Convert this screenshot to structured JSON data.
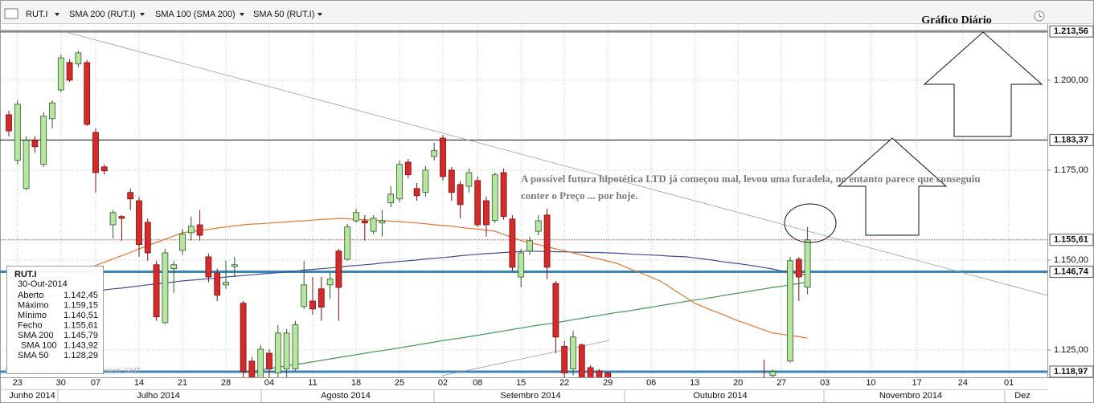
{
  "chart_data": {
    "type": "candlestick",
    "symbol": "RUT.I",
    "title": "Gráfico Diário",
    "annotation": [
      "A possível futura hipotética LTD já começou mal, levou uma furadela, no entanto parece que conseguiu",
      "conter o Preço ... por hoje."
    ],
    "disclaimer": "PREÇO INDICATIVO - Fuso horário: GMT",
    "ylim": [
      1117.4,
      1215.6
    ],
    "yticks": [
      {
        "value": 1125,
        "label": "1.125,00"
      },
      {
        "value": 1150,
        "label": "1.150,00"
      },
      {
        "value": 1175,
        "label": "1.175,00"
      },
      {
        "value": 1200,
        "label": "1.200,00"
      }
    ],
    "grid": true,
    "up_color": "#b8e6a0",
    "down_color": "#d42a2a",
    "levels": [
      {
        "value": 1213.56,
        "label": "1.213,56",
        "color": "#8a8a8a"
      },
      {
        "value": 1183.37,
        "label": "1.183,37",
        "color": "#111111"
      },
      {
        "value": 1155.61,
        "label": "1.155,61",
        "color": "#c05050"
      },
      {
        "value": 1146.74,
        "label": "1.146,74",
        "color": "#3a84ba"
      },
      {
        "value": 1118.97,
        "label": "1.118,97",
        "color": "#3a84ba"
      }
    ],
    "categories": [
      null,
      "23",
      null,
      null,
      null,
      null,
      "30",
      null,
      null,
      null,
      "07",
      null,
      null,
      null,
      null,
      "14",
      null,
      null,
      null,
      null,
      "21",
      null,
      null,
      null,
      null,
      "28",
      null,
      null,
      null,
      null,
      "04",
      null,
      null,
      null,
      null,
      "11",
      null,
      null,
      null,
      null,
      "18",
      null,
      null,
      null,
      null,
      "25",
      null,
      null,
      null,
      null,
      "02",
      null,
      null,
      null,
      "08",
      null,
      null,
      null,
      null,
      "15",
      null,
      null,
      null,
      null,
      "22",
      null,
      null,
      null,
      null,
      "29",
      null,
      null,
      null,
      null,
      "06",
      null,
      null,
      null,
      null,
      "13",
      null,
      null,
      null,
      null,
      "20",
      null,
      null,
      null,
      null,
      "27",
      null,
      null,
      null
    ],
    "future_days": [
      "03",
      "10",
      "17",
      "24",
      "01"
    ],
    "months": [
      "Junho 2014",
      "Julho 2014",
      "Agosto 2014",
      "Setembro 2014",
      "Outubro 2014",
      "Novembro 2014",
      "Dez"
    ],
    "candles": [
      {
        "open": 1190.4,
        "high": 1191.5,
        "low": 1184.4,
        "close": 1185.9
      },
      {
        "open": 1177.7,
        "high": 1194.4,
        "low": 1176.6,
        "close": 1193.3
      },
      {
        "open": 1169.9,
        "high": 1184.4,
        "low": 1169.4,
        "close": 1183.3
      },
      {
        "open": 1183.3,
        "high": 1184.4,
        "low": 1179.9,
        "close": 1181.5
      },
      {
        "open": 1176.6,
        "high": 1191.1,
        "low": 1175.9,
        "close": 1190.0
      },
      {
        "open": 1189.3,
        "high": 1194.4,
        "low": 1186.6,
        "close": 1193.7
      },
      {
        "open": 1197.3,
        "high": 1207.1,
        "low": 1196.6,
        "close": 1206.2
      },
      {
        "open": 1204.9,
        "high": 1205.8,
        "low": 1199.5,
        "close": 1200.0
      },
      {
        "open": 1204.5,
        "high": 1208.2,
        "low": 1203.6,
        "close": 1207.6
      },
      {
        "open": 1204.9,
        "high": 1205.6,
        "low": 1187.3,
        "close": 1187.7
      },
      {
        "open": 1185.5,
        "high": 1186.6,
        "low": 1168.8,
        "close": 1174.3
      },
      {
        "open": 1175.9,
        "high": 1176.6,
        "low": 1173.7,
        "close": 1174.8
      },
      {
        "open": 1159.8,
        "high": 1163.9,
        "low": 1156.0,
        "close": 1163.2
      },
      {
        "open": 1162.1,
        "high": 1162.5,
        "low": 1155.4,
        "close": 1161.6
      },
      {
        "open": 1168.8,
        "high": 1169.9,
        "low": 1163.9,
        "close": 1167.0
      },
      {
        "open": 1166.5,
        "high": 1167.6,
        "low": 1150.9,
        "close": 1154.3
      },
      {
        "open": 1160.5,
        "high": 1161.6,
        "low": 1149.8,
        "close": 1152.0
      },
      {
        "open": 1148.7,
        "high": 1149.8,
        "low": 1133.1,
        "close": 1134.2
      },
      {
        "open": 1132.6,
        "high": 1153.1,
        "low": 1132.2,
        "close": 1152.0
      },
      {
        "open": 1147.6,
        "high": 1149.8,
        "low": 1140.9,
        "close": 1148.7
      },
      {
        "open": 1152.7,
        "high": 1158.7,
        "low": 1151.4,
        "close": 1157.2
      },
      {
        "open": 1157.6,
        "high": 1162.1,
        "low": 1155.4,
        "close": 1159.4
      },
      {
        "open": 1159.8,
        "high": 1163.9,
        "low": 1155.4,
        "close": 1156.9
      },
      {
        "open": 1150.9,
        "high": 1151.8,
        "low": 1143.8,
        "close": 1145.3
      },
      {
        "open": 1146.4,
        "high": 1147.6,
        "low": 1138.6,
        "close": 1140.2
      },
      {
        "open": 1143.1,
        "high": 1149.8,
        "low": 1142.0,
        "close": 1143.8
      },
      {
        "open": 1148.2,
        "high": 1150.9,
        "low": 1145.3,
        "close": 1148.7
      },
      {
        "open": 1138.0,
        "high": 1138.6,
        "low": 1115.0,
        "close": 1119.0
      },
      {
        "open": 1121.9,
        "high": 1123.0,
        "low": 1112.0,
        "close": 1116.0
      },
      {
        "open": 1116.0,
        "high": 1126.4,
        "low": 1112.0,
        "close": 1125.2
      },
      {
        "open": 1124.1,
        "high": 1125.2,
        "low": 1115.0,
        "close": 1119.7
      },
      {
        "open": 1118.6,
        "high": 1132.0,
        "low": 1115.0,
        "close": 1129.7
      },
      {
        "open": 1119.7,
        "high": 1130.8,
        "low": 1116.0,
        "close": 1129.7
      },
      {
        "open": 1119.7,
        "high": 1133.1,
        "low": 1119.2,
        "close": 1132.0
      },
      {
        "open": 1137.1,
        "high": 1149.8,
        "low": 1136.4,
        "close": 1143.1
      },
      {
        "open": 1138.6,
        "high": 1145.3,
        "low": 1134.8,
        "close": 1136.4
      },
      {
        "open": 1142.0,
        "high": 1145.3,
        "low": 1133.1,
        "close": 1136.9
      },
      {
        "open": 1143.1,
        "high": 1146.4,
        "low": 1139.3,
        "close": 1144.7
      },
      {
        "open": 1152.5,
        "high": 1153.1,
        "low": 1133.1,
        "close": 1142.4
      },
      {
        "open": 1150.2,
        "high": 1160.1,
        "low": 1149.8,
        "close": 1159.2
      },
      {
        "open": 1160.9,
        "high": 1164.3,
        "low": 1160.3,
        "close": 1163.2
      },
      {
        "open": 1160.9,
        "high": 1162.5,
        "low": 1155.4,
        "close": 1160.3
      },
      {
        "open": 1158.0,
        "high": 1162.5,
        "low": 1157.2,
        "close": 1161.6
      },
      {
        "open": 1160.3,
        "high": 1163.9,
        "low": 1156.5,
        "close": 1160.9
      },
      {
        "open": 1165.9,
        "high": 1170.5,
        "low": 1164.7,
        "close": 1168.3
      },
      {
        "open": 1167.0,
        "high": 1177.7,
        "low": 1166.1,
        "close": 1176.6
      },
      {
        "open": 1177.2,
        "high": 1178.1,
        "low": 1172.8,
        "close": 1173.7
      },
      {
        "open": 1169.9,
        "high": 1171.4,
        "low": 1166.5,
        "close": 1167.9
      },
      {
        "open": 1168.8,
        "high": 1176.1,
        "low": 1167.6,
        "close": 1175.0
      },
      {
        "open": 1178.8,
        "high": 1182.6,
        "low": 1177.7,
        "close": 1180.4
      },
      {
        "open": 1183.9,
        "high": 1184.8,
        "low": 1172.1,
        "close": 1173.2
      },
      {
        "open": 1175.0,
        "high": 1175.9,
        "low": 1166.5,
        "close": 1168.8
      },
      {
        "open": 1171.0,
        "high": 1171.9,
        "low": 1161.6,
        "close": 1165.4
      },
      {
        "open": 1170.5,
        "high": 1175.4,
        "low": 1168.8,
        "close": 1174.3
      },
      {
        "open": 1172.1,
        "high": 1173.2,
        "low": 1159.2,
        "close": 1159.8
      },
      {
        "open": 1166.5,
        "high": 1167.6,
        "low": 1156.5,
        "close": 1159.8
      },
      {
        "open": 1161.0,
        "high": 1174.3,
        "low": 1160.3,
        "close": 1173.7
      },
      {
        "open": 1174.3,
        "high": 1175.4,
        "low": 1161.2,
        "close": 1162.1
      },
      {
        "open": 1161.4,
        "high": 1162.5,
        "low": 1146.9,
        "close": 1148.0
      },
      {
        "open": 1145.3,
        "high": 1153.1,
        "low": 1142.4,
        "close": 1152.0
      },
      {
        "open": 1152.5,
        "high": 1156.5,
        "low": 1151.4,
        "close": 1155.4
      },
      {
        "open": 1158.0,
        "high": 1162.5,
        "low": 1156.9,
        "close": 1160.9
      },
      {
        "open": 1162.5,
        "high": 1164.3,
        "low": 1144.7,
        "close": 1148.0
      },
      {
        "open": 1143.5,
        "high": 1144.2,
        "low": 1124.1,
        "close": 1128.6
      },
      {
        "open": 1126.0,
        "high": 1127.5,
        "low": 1115.0,
        "close": 1118.6
      },
      {
        "open": 1119.7,
        "high": 1130.4,
        "low": 1117.9,
        "close": 1128.6
      },
      {
        "open": 1126.4,
        "high": 1126.8,
        "low": 1112.0,
        "close": 1116.0
      },
      {
        "open": 1120.1,
        "high": 1120.8,
        "low": 1110.0,
        "close": 1115.0
      },
      {
        "open": 1119.2,
        "high": 1119.7,
        "low": 1110.0,
        "close": 1114.0
      },
      {
        "open": 1118.6,
        "high": 1118.9,
        "low": 1108.0,
        "close": 1113.0
      },
      null,
      null,
      null,
      null,
      null,
      null,
      null,
      null,
      null,
      null,
      null,
      null,
      null,
      null,
      null,
      null,
      null,
      {
        "open": 1114.0,
        "high": 1122.3,
        "low": 1108.0,
        "close": 1112.0
      },
      {
        "open": 1117.9,
        "high": 1119.5,
        "low": 1110.0,
        "close": 1119.0
      },
      null,
      {
        "open": 1121.9,
        "high": 1150.9,
        "low": 1121.5,
        "close": 1149.8
      },
      {
        "open": 1150.2,
        "high": 1150.9,
        "low": 1138.6,
        "close": 1145.3
      },
      {
        "open": 1142.45,
        "high": 1159.15,
        "low": 1140.51,
        "close": 1155.61
      }
    ],
    "series": [
      {
        "name": "SMA 200 (RUT.I)",
        "color": "#3f4f96",
        "values": [
          1138.6,
          1138.9,
          1139.2,
          1139.4,
          1139.7,
          1140.0,
          1140.3,
          1140.6,
          1140.8,
          1141.1,
          1141.4,
          1141.7,
          1142.0,
          1142.2,
          1142.5,
          1142.8,
          1143.1,
          1143.4,
          1143.6,
          1143.9,
          1144.2,
          1144.4,
          1144.6,
          1144.8,
          1145.0,
          1145.3,
          1145.5,
          1145.7,
          1145.9,
          1146.1,
          1146.3,
          1146.5,
          1146.7,
          1146.9,
          1147.2,
          1147.4,
          1147.6,
          1147.8,
          1148.0,
          1148.3,
          1148.5,
          1148.7,
          1148.9,
          1149.2,
          1149.4,
          1149.6,
          1149.8,
          1150.0,
          1150.3,
          1150.5,
          1150.7,
          1150.9,
          1151.2,
          1151.4,
          1151.6,
          1151.8,
          1151.9,
          1152.1,
          1152.2,
          1152.4,
          1152.5,
          1152.4,
          1152.4,
          1152.3,
          1152.3,
          1152.2,
          1152.2,
          1152.1,
          1152.1,
          1152.0,
          1151.9,
          1151.8,
          1151.6,
          1151.5,
          1151.4,
          1151.3,
          1151.1,
          1151.0,
          1150.9,
          1150.6,
          1150.3,
          1150.0,
          1149.6,
          1149.3,
          1149.0,
          1148.7,
          1148.3,
          1147.9,
          1147.5,
          1147.0,
          1146.6,
          1146.2,
          1145.79
        ]
      },
      {
        "name": "SMA 100 (SMA 200)",
        "color": "#3f9a55",
        "values": [
          null,
          null,
          null,
          null,
          null,
          null,
          null,
          null,
          null,
          null,
          null,
          null,
          null,
          null,
          null,
          null,
          null,
          null,
          null,
          null,
          null,
          null,
          null,
          null,
          null,
          null,
          null,
          1118.6,
          1119.0,
          1119.4,
          1119.8,
          1120.2,
          1120.6,
          1121.0,
          1121.3,
          1121.7,
          1122.1,
          1122.5,
          1122.9,
          1123.3,
          1123.7,
          1124.1,
          1124.5,
          1124.8,
          1125.2,
          1125.6,
          1126.0,
          1126.4,
          1126.8,
          1127.2,
          1127.6,
          1128.0,
          1128.3,
          1128.7,
          1129.1,
          1129.5,
          1129.9,
          1130.3,
          1130.7,
          1131.1,
          1131.5,
          1131.9,
          1132.2,
          1132.6,
          1133.0,
          1133.4,
          1133.8,
          1134.2,
          1134.6,
          1135.0,
          1135.4,
          1135.7,
          1136.1,
          1136.5,
          1136.9,
          1137.3,
          1137.7,
          1138.1,
          1138.5,
          1138.9,
          1139.2,
          1139.6,
          1140.0,
          1140.4,
          1140.8,
          1141.2,
          1141.6,
          1142.0,
          1142.4,
          1142.7,
          1143.1,
          1143.5,
          1143.92
        ]
      },
      {
        "name": "SMA 50 (RUT.I)",
        "color": "#e0762e",
        "values": [
          null,
          null,
          null,
          null,
          null,
          null,
          null,
          null,
          null,
          1147.6,
          1148.5,
          1149.4,
          1150.3,
          1151.2,
          1152.1,
          1153.1,
          1154.0,
          1154.9,
          1155.8,
          1156.7,
          1157.6,
          1157.9,
          1158.2,
          1158.5,
          1158.9,
          1159.2,
          1159.5,
          1159.8,
          1160.0,
          1160.1,
          1160.3,
          1160.4,
          1160.6,
          1160.8,
          1160.9,
          1161.1,
          1161.3,
          1161.4,
          1161.6,
          1161.5,
          1161.3,
          1161.2,
          1161.1,
          1161.0,
          1160.8,
          1160.7,
          1160.5,
          1160.3,
          1160.1,
          1159.8,
          1159.6,
          1159.4,
          1159.1,
          1158.8,
          1158.6,
          1158.3,
          1158.0,
          1157.1,
          1156.3,
          1155.4,
          1154.8,
          1154.3,
          1153.7,
          1153.1,
          1152.6,
          1152.0,
          1151.4,
          1150.8,
          1150.3,
          1149.7,
          1149.1,
          1148.1,
          1147.1,
          1146.2,
          1145.2,
          1144.2,
          1142.7,
          1141.1,
          1139.6,
          1138.0,
          1137.0,
          1136.0,
          1135.1,
          1134.1,
          1133.1,
          1132.3,
          1131.4,
          1130.6,
          1129.7,
          1129.4,
          1129.0,
          1128.7,
          1128.29
        ]
      }
    ],
    "info": {
      "symbol": "RUT.I",
      "date": "30-Out-2014",
      "rows": [
        {
          "label": "Aberto",
          "value": "1.142,45"
        },
        {
          "label": "Máximo",
          "value": "1.159,15"
        },
        {
          "label": "Mínimo",
          "value": "1.140,51"
        },
        {
          "label": "Fecho",
          "value": "1.155,61"
        },
        {
          "label": "SMA 200",
          "value": "1.145,79",
          "color": "#3f4f96"
        },
        {
          "label": "SMA 100",
          "value": "1.143,92",
          "color": "#3f9a55"
        },
        {
          "label": "SMA 50",
          "value": "1.128,29",
          "color": "#e0762e"
        }
      ]
    }
  }
}
